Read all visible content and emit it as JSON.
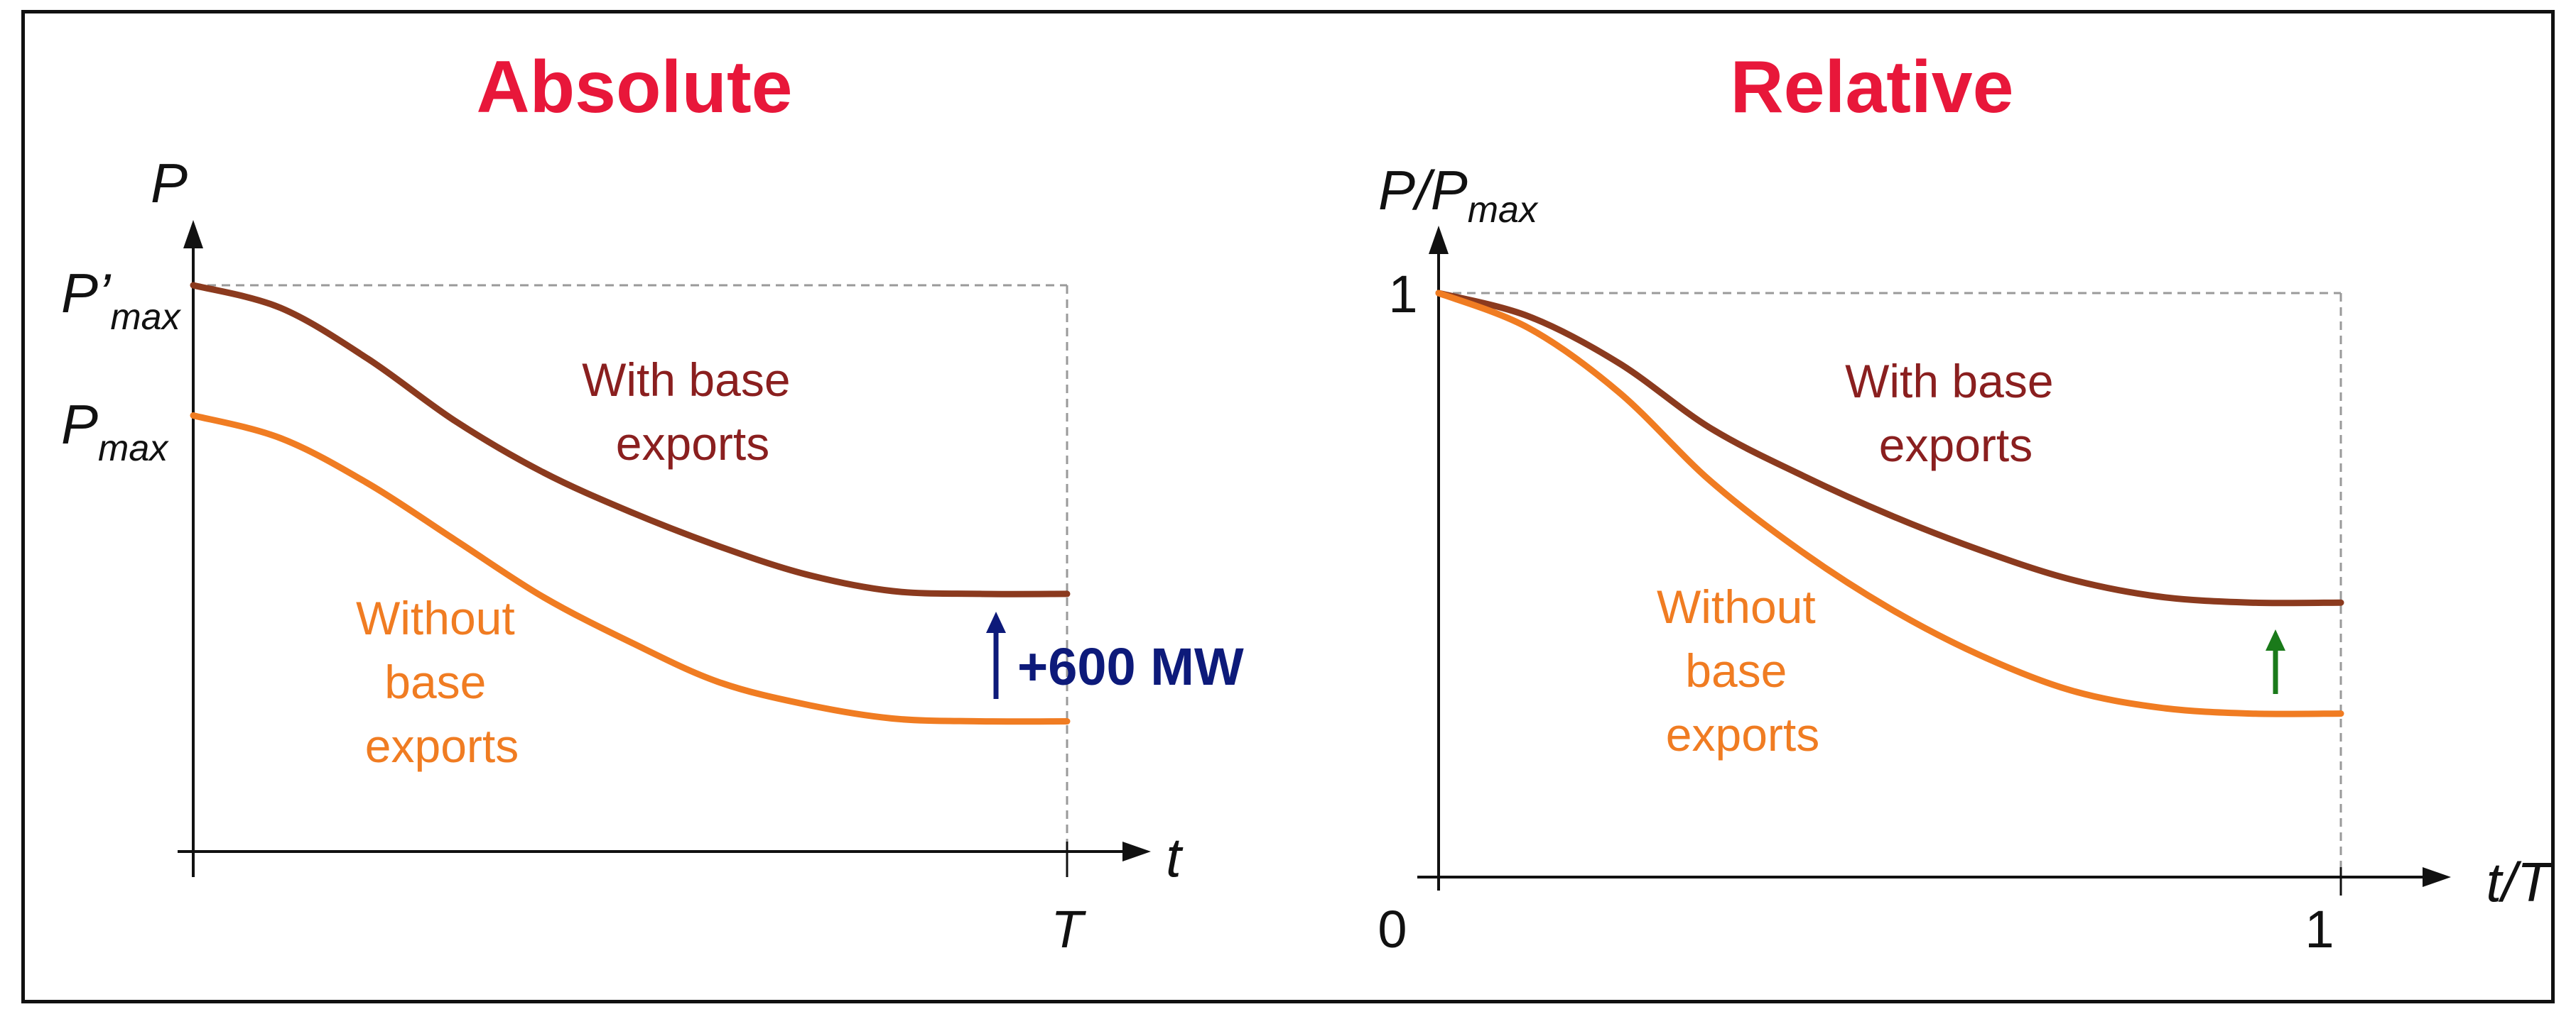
{
  "colors": {
    "title": "#e8173a",
    "with_base": "#8b3a1e",
    "with_base_text": "#8a1f1f",
    "without_base": "#f07c22",
    "delta_abs": "#0d1a7a",
    "delta_rel": "#1a7a1a",
    "axis": "#111111",
    "guide": "#9a9a9a"
  },
  "chart_data": [
    {
      "type": "line",
      "title": "Absolute",
      "ylabel_main": "P",
      "xlabel": "t",
      "x_ticks": [
        "T"
      ],
      "y_ticks": [
        {
          "main": "P’",
          "sub": "max",
          "value": 1.0
        },
        {
          "main": "P",
          "sub": "max",
          "value": 0.77
        }
      ],
      "xlim": [
        0,
        1
      ],
      "ylim": [
        0,
        1
      ],
      "series": [
        {
          "name": "With base exports",
          "x": [
            0,
            0.1,
            0.2,
            0.3,
            0.4,
            0.5,
            0.6,
            0.7,
            0.8,
            0.9,
            1.0
          ],
          "y": [
            1.0,
            0.96,
            0.87,
            0.76,
            0.67,
            0.6,
            0.54,
            0.49,
            0.46,
            0.455,
            0.455
          ]
        },
        {
          "name": "Without base exports",
          "x": [
            0,
            0.1,
            0.2,
            0.3,
            0.4,
            0.5,
            0.6,
            0.7,
            0.8,
            0.9,
            1.0
          ],
          "y": [
            0.77,
            0.73,
            0.65,
            0.55,
            0.45,
            0.37,
            0.3,
            0.26,
            0.235,
            0.23,
            0.23
          ]
        }
      ],
      "annotations": {
        "with_base": [
          "With base",
          "exports"
        ],
        "without_base": [
          "Without",
          "base",
          "exports"
        ],
        "delta": "+600 MW"
      }
    },
    {
      "type": "line",
      "title": "Relative",
      "ylabel_main": "P/P",
      "ylabel_sub": "max",
      "xlabel": "t/T",
      "x_ticks": [
        "0",
        "1"
      ],
      "y_ticks": [
        "1"
      ],
      "xlim": [
        0,
        1
      ],
      "ylim": [
        0,
        1
      ],
      "series": [
        {
          "name": "With base exports",
          "x": [
            0,
            0.1,
            0.2,
            0.3,
            0.4,
            0.5,
            0.6,
            0.7,
            0.8,
            0.9,
            1.0
          ],
          "y": [
            1.0,
            0.96,
            0.88,
            0.77,
            0.69,
            0.62,
            0.56,
            0.51,
            0.48,
            0.47,
            0.47
          ]
        },
        {
          "name": "Without base exports",
          "x": [
            0,
            0.1,
            0.2,
            0.3,
            0.4,
            0.5,
            0.6,
            0.7,
            0.8,
            0.9,
            1.0
          ],
          "y": [
            1.0,
            0.94,
            0.83,
            0.68,
            0.56,
            0.46,
            0.38,
            0.32,
            0.29,
            0.28,
            0.28
          ]
        }
      ],
      "annotations": {
        "with_base": [
          "With base",
          "exports"
        ],
        "without_base": [
          "Without",
          "base",
          "exports"
        ]
      }
    }
  ]
}
